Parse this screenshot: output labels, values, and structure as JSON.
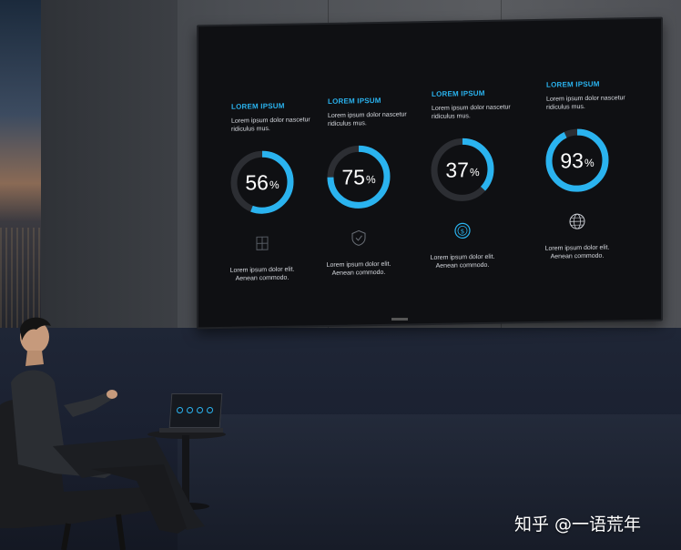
{
  "accent_color": "#2ab3ef",
  "track_color": "#2c2e33",
  "cards": [
    {
      "title": "LOREM IPSUM",
      "text": "Lorem ipsum dolor nascetur ridiculus mus.",
      "value": "56",
      "unit": "%",
      "fraction": 0.56,
      "icon": "server-icon",
      "footer": "Lorem ipsum dolor elit. Aenean commodo."
    },
    {
      "title": "LOREM IPSUM",
      "text": "Lorem ipsum dolor nascetur ridiculus mus.",
      "value": "75",
      "unit": "%",
      "fraction": 0.75,
      "icon": "shield-check-icon",
      "footer": "Lorem ipsum dolor elit. Aenean commodo."
    },
    {
      "title": "LOREM IPSUM",
      "text": "Lorem ipsum dolor nascetur ridiculus mus.",
      "value": "37",
      "unit": "%",
      "fraction": 0.37,
      "icon": "dollar-coin-icon",
      "footer": "Lorem ipsum dolor elit. Aenean commodo."
    },
    {
      "title": "LOREM IPSUM",
      "text": "Lorem ipsum dolor nascetur ridiculus mus.",
      "value": "93",
      "unit": "%",
      "fraction": 0.93,
      "icon": "globe-icon",
      "footer": "Lorem ipsum dolor elit. Aenean commodo."
    }
  ],
  "watermark": "知乎 @一语荒年"
}
